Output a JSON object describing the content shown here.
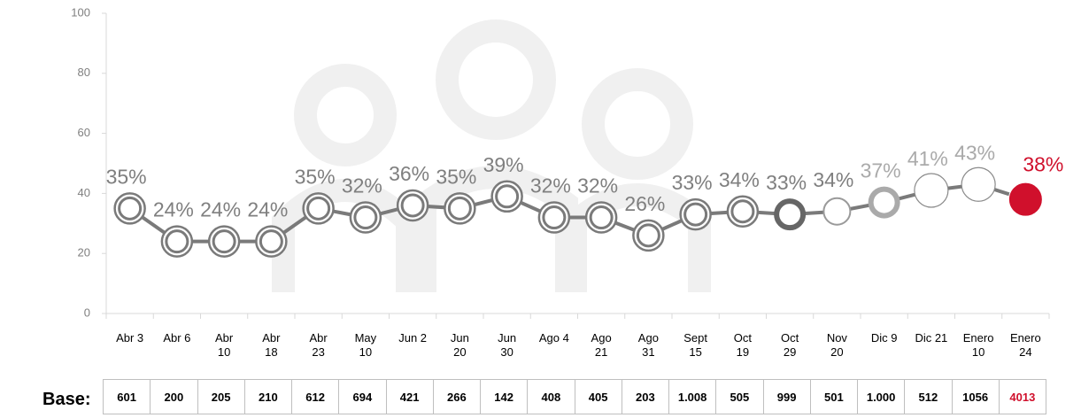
{
  "chart_data": {
    "type": "line",
    "categories": [
      "Abr 3",
      "Abr 6",
      "Abr 10",
      "Abr 18",
      "Abr 23",
      "May 10",
      "Jun 2",
      "Jun 20",
      "Jun 30",
      "Ago 4",
      "Ago 21",
      "Ago 31",
      "Sept 15",
      "Oct 19",
      "Oct 29",
      "Nov 20",
      "Dic 9",
      "Dic 21",
      "Enero 10",
      "Enero 24"
    ],
    "series": [
      {
        "color": "#7a7a7a",
        "values": [
          35,
          24,
          24,
          24,
          35,
          32,
          36,
          35,
          39,
          32,
          32,
          26,
          33,
          34,
          33,
          34,
          37,
          41,
          43,
          38
        ],
        "value_labels": [
          "35%",
          "24%",
          "24%",
          "24%",
          "35%",
          "32%",
          "36%",
          "35%",
          "39%",
          "32%",
          "32%",
          "26%",
          "33%",
          "34%",
          "33%",
          "34%",
          "37%",
          "41%",
          "43%",
          "38%"
        ],
        "marker_colors": [
          "#7a7a7a",
          "#7a7a7a",
          "#7a7a7a",
          "#7a7a7a",
          "#7a7a7a",
          "#7a7a7a",
          "#7a7a7a",
          "#7a7a7a",
          "#7a7a7a",
          "#7a7a7a",
          "#7a7a7a",
          "#7a7a7a",
          "#7a7a7a",
          "#7a7a7a",
          "#666666",
          "#9a9a9a",
          "#aaaaaa",
          "#8a8a8a",
          "#8a8a8a",
          "#d0102c"
        ]
      }
    ],
    "ylim": [
      0,
      100
    ],
    "yticks": [
      0,
      20,
      40,
      60,
      80,
      100
    ],
    "highlight_color": "#d0102c",
    "base_label": "Base:",
    "base": [
      "601",
      "200",
      "205",
      "210",
      "612",
      "694",
      "421",
      "266",
      "142",
      "408",
      "405",
      "203",
      "1.008",
      "505",
      "999",
      "501",
      "1.000",
      "512",
      "1056",
      "4013"
    ]
  }
}
